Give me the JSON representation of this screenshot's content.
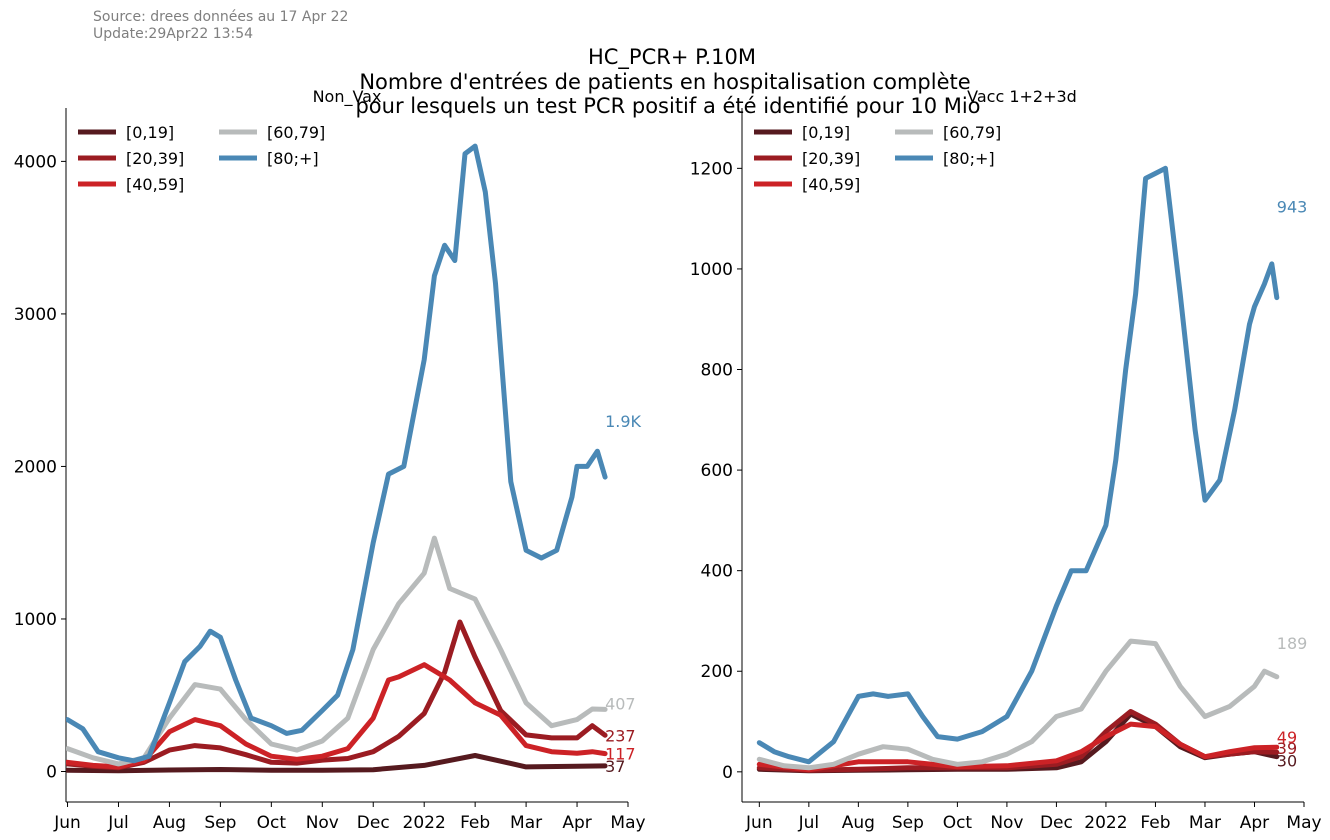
{
  "header": {
    "source": "Source: drees données au 17 Apr 22",
    "update": "Update:29Apr22 13:54",
    "title_line1": "HC_PCR+ P.10M",
    "title_line2": "Nombre d'entrées de patients en hospitalisation complète",
    "title_line3": "pour lesquels un test PCR positif a été identifié pour 10 Mio"
  },
  "colors": {
    "[0,19]": "#561a1f",
    "[20,39]": "#9b1c22",
    "[40,59]": "#cc2226",
    "[60,79]": "#b8bbbb",
    "[80;+]": "#4a88b5"
  },
  "chart_data": [
    {
      "type": "line",
      "title": "Non_Vax",
      "x_ticks": [
        "Jun",
        "Jul",
        "Aug",
        "Sep",
        "Oct",
        "Nov",
        "Dec",
        "2022",
        "Feb",
        "Mar",
        "Apr",
        "May"
      ],
      "x_tick_positions": [
        0,
        1,
        2,
        3,
        4,
        5,
        6,
        7,
        8,
        9,
        10,
        11
      ],
      "xlim": [
        -0.03,
        11.0
      ],
      "ylim": [
        -200,
        4350
      ],
      "y_ticks": [
        0,
        1000,
        2000,
        3000,
        4000
      ],
      "y_tick_labels": [
        "0",
        "1000",
        "2000",
        "3000",
        "4000"
      ],
      "legend": "top-left",
      "series": [
        {
          "name": "[0,19]",
          "end_label": "37",
          "x": [
            0,
            1,
            2,
            3,
            4,
            5,
            6,
            7,
            8,
            9,
            10,
            10.55
          ],
          "values": [
            8,
            5,
            10,
            13,
            8,
            8,
            12,
            40,
            105,
            30,
            35,
            37
          ]
        },
        {
          "name": "[20,39]",
          "end_label": "237",
          "x": [
            0,
            0.5,
            1,
            1.5,
            2,
            2.5,
            3,
            3.5,
            4,
            4.5,
            5,
            5.5,
            6,
            6.5,
            7,
            7.4,
            7.7,
            8,
            8.5,
            9,
            9.5,
            10,
            10.3,
            10.55
          ],
          "values": [
            50,
            35,
            25,
            60,
            140,
            170,
            155,
            110,
            60,
            55,
            75,
            85,
            130,
            230,
            380,
            650,
            980,
            750,
            400,
            240,
            220,
            220,
            300,
            237
          ]
        },
        {
          "name": "[40,59]",
          "end_label": "117",
          "x": [
            0,
            0.5,
            1,
            1.5,
            2,
            2.5,
            3,
            3.5,
            4,
            4.5,
            5,
            5.5,
            6,
            6.3,
            6.5,
            7,
            7.5,
            8,
            8.5,
            9,
            9.5,
            10,
            10.3,
            10.55
          ],
          "values": [
            60,
            40,
            30,
            70,
            260,
            340,
            300,
            180,
            100,
            80,
            100,
            150,
            350,
            600,
            620,
            700,
            600,
            450,
            370,
            170,
            130,
            120,
            130,
            117
          ]
        },
        {
          "name": "[60,79]",
          "end_label": "407",
          "x": [
            0,
            0.5,
            1,
            1.5,
            2,
            2.5,
            3,
            3.5,
            4,
            4.5,
            5,
            5.5,
            6,
            6.5,
            7,
            7.2,
            7.5,
            8,
            8.5,
            9,
            9.5,
            10,
            10.3,
            10.55
          ],
          "values": [
            150,
            90,
            50,
            90,
            350,
            570,
            540,
            340,
            180,
            140,
            200,
            350,
            800,
            1100,
            1300,
            1530,
            1200,
            1130,
            800,
            450,
            300,
            340,
            410,
            407
          ]
        },
        {
          "name": "[80;+]",
          "end_label": "1.9K",
          "x": [
            0,
            0.3,
            0.6,
            1,
            1.3,
            1.6,
            2,
            2.3,
            2.6,
            2.8,
            3,
            3.3,
            3.6,
            4,
            4.3,
            4.6,
            5,
            5.3,
            5.6,
            6,
            6.3,
            6.6,
            7,
            7.2,
            7.4,
            7.6,
            7.8,
            8,
            8.2,
            8.4,
            8.7,
            9,
            9.3,
            9.6,
            9.9,
            10,
            10.2,
            10.4,
            10.55
          ],
          "values": [
            340,
            280,
            130,
            90,
            70,
            100,
            450,
            720,
            820,
            920,
            880,
            600,
            350,
            300,
            250,
            270,
            400,
            500,
            800,
            1500,
            1950,
            2000,
            2700,
            3250,
            3450,
            3350,
            4050,
            4100,
            3800,
            3200,
            1900,
            1450,
            1400,
            1450,
            1800,
            2000,
            2000,
            2100,
            1930
          ]
        }
      ]
    },
    {
      "type": "line",
      "title": "Vacc 1+2+3d",
      "x_ticks": [
        "Jun",
        "Jul",
        "Aug",
        "Sep",
        "Oct",
        "Nov",
        "Dec",
        "2022",
        "Feb",
        "Mar",
        "Apr",
        "May"
      ],
      "x_tick_positions": [
        0,
        1,
        2,
        3,
        4,
        5,
        6,
        7,
        8,
        9,
        10,
        11
      ],
      "xlim": [
        -0.35,
        11.0
      ],
      "ylim": [
        -60,
        1320
      ],
      "y_ticks": [
        0,
        200,
        400,
        600,
        800,
        1000,
        1200
      ],
      "y_tick_labels": [
        "0",
        "200",
        "400",
        "600",
        "800",
        "1000",
        "1200"
      ],
      "legend": "top-left",
      "series": [
        {
          "name": "[0,19]",
          "end_label": "30",
          "x": [
            0,
            1,
            2,
            3,
            4,
            5,
            6,
            6.5,
            7,
            7.5,
            8,
            8.5,
            9,
            9.5,
            10,
            10.45
          ],
          "values": [
            5,
            2,
            3,
            4,
            5,
            5,
            8,
            20,
            60,
            115,
            90,
            50,
            28,
            35,
            40,
            30
          ]
        },
        {
          "name": "[20,39]",
          "end_label": "39",
          "x": [
            0,
            1,
            2,
            3,
            4,
            5,
            6,
            6.5,
            7,
            7.5,
            8,
            8.5,
            9,
            9.5,
            10,
            10.45
          ],
          "values": [
            8,
            3,
            5,
            8,
            8,
            8,
            15,
            30,
            80,
            120,
            95,
            55,
            30,
            35,
            40,
            39
          ]
        },
        {
          "name": "[40,59]",
          "end_label": "49",
          "x": [
            0,
            1,
            2,
            3,
            4,
            5,
            6,
            6.5,
            7,
            7.5,
            8,
            8.5,
            9,
            9.5,
            10,
            10.45
          ],
          "values": [
            15,
            4,
            20,
            20,
            10,
            12,
            22,
            40,
            70,
            95,
            90,
            55,
            30,
            40,
            48,
            49
          ]
        },
        {
          "name": "[60,79]",
          "end_label": "189",
          "x": [
            0,
            0.5,
            1,
            1.5,
            2,
            2.5,
            3,
            3.5,
            4,
            4.5,
            5,
            5.5,
            6,
            6.5,
            7,
            7.5,
            8,
            8.5,
            9,
            9.5,
            10,
            10.2,
            10.45
          ],
          "values": [
            25,
            12,
            8,
            15,
            35,
            50,
            45,
            25,
            15,
            20,
            35,
            60,
            110,
            125,
            200,
            260,
            255,
            170,
            110,
            130,
            170,
            200,
            189
          ]
        },
        {
          "name": "[80;+]",
          "end_label": "943",
          "x": [
            0,
            0.3,
            0.6,
            1,
            1.5,
            2,
            2.3,
            2.6,
            3,
            3.3,
            3.6,
            4,
            4.5,
            5,
            5.5,
            6,
            6.3,
            6.6,
            7,
            7.2,
            7.4,
            7.6,
            7.8,
            8,
            8.2,
            8.5,
            8.8,
            9,
            9.3,
            9.6,
            9.9,
            10,
            10.2,
            10.35,
            10.45
          ],
          "values": [
            58,
            40,
            30,
            20,
            60,
            150,
            155,
            150,
            155,
            110,
            70,
            65,
            80,
            110,
            200,
            330,
            400,
            400,
            490,
            620,
            800,
            950,
            1180,
            1190,
            1200,
            950,
            680,
            540,
            580,
            720,
            890,
            925,
            970,
            1010,
            943
          ]
        }
      ]
    }
  ]
}
